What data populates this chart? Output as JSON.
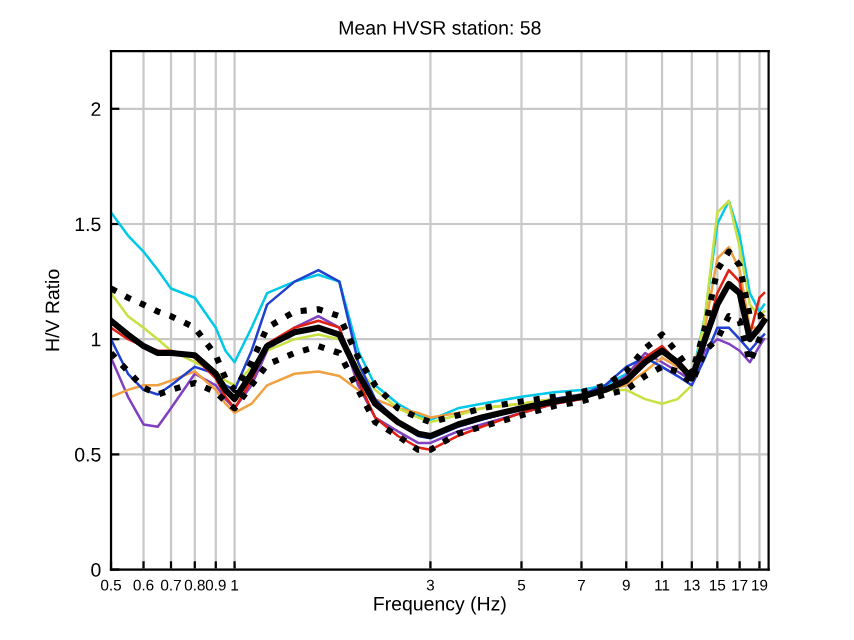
{
  "chart_data": {
    "type": "line",
    "title": "Mean HVSR station: 58",
    "xlabel": "Frequency (Hz)",
    "ylabel": "H/V Ratio",
    "log": "x",
    "grid": true,
    "xlim": [
      0.5,
      20
    ],
    "ylim": [
      0,
      2.25
    ],
    "xticks": [
      0.5,
      0.6,
      0.7,
      0.8,
      0.9,
      1,
      3,
      5,
      7,
      9,
      11,
      13,
      15,
      17,
      19
    ],
    "yticks": [
      0,
      0.5,
      1,
      1.5,
      2
    ],
    "x": [
      0.5,
      0.55,
      0.6,
      0.65,
      0.7,
      0.8,
      0.9,
      0.95,
      1.0,
      1.1,
      1.2,
      1.4,
      1.6,
      1.8,
      2.0,
      2.2,
      2.5,
      2.8,
      3.0,
      3.5,
      4,
      5,
      6,
      7,
      8,
      9,
      10,
      11,
      12,
      13,
      14,
      15,
      16,
      17,
      18,
      19,
      19.5
    ],
    "series": [
      {
        "color": "#00c8e8",
        "line_style": "solid",
        "values": [
          1.55,
          1.45,
          1.38,
          1.3,
          1.22,
          1.18,
          1.05,
          0.95,
          0.9,
          1.05,
          1.2,
          1.25,
          1.28,
          1.25,
          0.95,
          0.8,
          0.72,
          0.67,
          0.65,
          0.7,
          0.72,
          0.75,
          0.77,
          0.78,
          0.8,
          0.85,
          0.92,
          0.96,
          0.9,
          0.83,
          1.1,
          1.5,
          1.6,
          1.45,
          1.2,
          1.12,
          1.15
        ]
      },
      {
        "color": "#8040c0",
        "line_style": "solid",
        "values": [
          0.92,
          0.75,
          0.63,
          0.62,
          0.7,
          0.85,
          0.8,
          0.74,
          0.7,
          0.8,
          0.95,
          1.05,
          1.1,
          1.05,
          0.8,
          0.66,
          0.6,
          0.55,
          0.55,
          0.6,
          0.63,
          0.68,
          0.72,
          0.74,
          0.78,
          0.84,
          0.94,
          0.9,
          0.86,
          0.82,
          0.95,
          1.0,
          0.98,
          0.95,
          0.9,
          0.97,
          1.0
        ]
      },
      {
        "color": "#f0a040",
        "line_style": "solid",
        "values": [
          0.75,
          0.78,
          0.8,
          0.8,
          0.82,
          0.86,
          0.78,
          0.72,
          0.68,
          0.72,
          0.8,
          0.85,
          0.86,
          0.84,
          0.78,
          0.74,
          0.7,
          0.68,
          0.66,
          0.68,
          0.7,
          0.72,
          0.74,
          0.76,
          0.78,
          0.8,
          0.86,
          0.92,
          0.88,
          0.84,
          1.05,
          1.35,
          1.4,
          1.3,
          1.05,
          1.05,
          1.1
        ]
      },
      {
        "color": "#c8e040",
        "line_style": "solid",
        "values": [
          1.2,
          1.1,
          1.05,
          1.0,
          0.95,
          0.9,
          0.86,
          0.82,
          0.8,
          0.88,
          0.95,
          1.0,
          1.02,
          1.0,
          0.88,
          0.78,
          0.7,
          0.66,
          0.64,
          0.67,
          0.7,
          0.72,
          0.74,
          0.76,
          0.78,
          0.78,
          0.74,
          0.72,
          0.74,
          0.8,
          1.1,
          1.55,
          1.6,
          1.4,
          1.15,
          1.1,
          1.12
        ]
      },
      {
        "color": "#2040d0",
        "line_style": "solid",
        "values": [
          1.0,
          0.85,
          0.78,
          0.76,
          0.8,
          0.88,
          0.85,
          0.8,
          0.78,
          0.95,
          1.15,
          1.25,
          1.3,
          1.25,
          0.9,
          0.74,
          0.64,
          0.58,
          0.57,
          0.62,
          0.65,
          0.7,
          0.74,
          0.76,
          0.8,
          0.88,
          0.92,
          0.88,
          0.84,
          0.8,
          0.92,
          1.05,
          1.05,
          1.0,
          0.95,
          1.0,
          1.02
        ]
      },
      {
        "color": "#e02010",
        "line_style": "solid",
        "values": [
          1.05,
          1.0,
          0.97,
          0.95,
          0.95,
          0.92,
          0.83,
          0.75,
          0.7,
          0.82,
          0.98,
          1.05,
          1.08,
          1.05,
          0.82,
          0.66,
          0.58,
          0.53,
          0.52,
          0.58,
          0.62,
          0.68,
          0.72,
          0.74,
          0.78,
          0.83,
          0.92,
          0.97,
          0.9,
          0.84,
          1.0,
          1.2,
          1.3,
          1.25,
          1.02,
          1.18,
          1.2
        ]
      },
      {
        "color": "#000000",
        "line_style": "dotted",
        "values": [
          1.22,
          1.18,
          1.15,
          1.12,
          1.1,
          1.05,
          0.93,
          0.83,
          0.78,
          0.9,
          1.05,
          1.12,
          1.13,
          1.1,
          0.92,
          0.8,
          0.7,
          0.66,
          0.64,
          0.67,
          0.7,
          0.73,
          0.75,
          0.77,
          0.8,
          0.86,
          0.96,
          1.02,
          0.94,
          0.85,
          1.05,
          1.3,
          1.38,
          1.32,
          1.1,
          1.1,
          1.12
        ]
      },
      {
        "color": "#000000",
        "line_style": "dotted",
        "values": [
          0.94,
          0.86,
          0.79,
          0.76,
          0.78,
          0.81,
          0.77,
          0.73,
          0.7,
          0.8,
          0.89,
          0.94,
          0.97,
          0.94,
          0.78,
          0.64,
          0.58,
          0.52,
          0.52,
          0.59,
          0.62,
          0.67,
          0.71,
          0.73,
          0.76,
          0.78,
          0.84,
          0.88,
          0.86,
          0.81,
          0.95,
          1.0,
          1.1,
          1.08,
          0.9,
          1.0,
          1.04
        ]
      },
      {
        "color": "#000000",
        "line_style": "solid",
        "values": [
          1.08,
          1.02,
          0.97,
          0.94,
          0.94,
          0.93,
          0.85,
          0.78,
          0.74,
          0.85,
          0.97,
          1.03,
          1.05,
          1.02,
          0.85,
          0.72,
          0.64,
          0.59,
          0.58,
          0.63,
          0.66,
          0.7,
          0.73,
          0.75,
          0.78,
          0.82,
          0.9,
          0.95,
          0.9,
          0.83,
          1.0,
          1.15,
          1.24,
          1.2,
          1.0,
          1.05,
          1.08
        ]
      }
    ]
  }
}
